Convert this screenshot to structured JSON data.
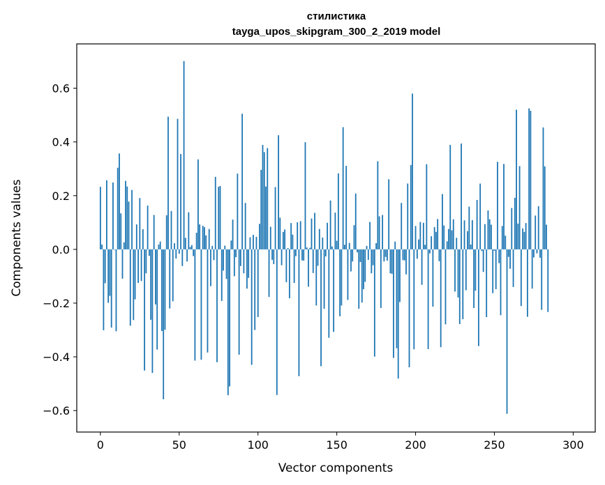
{
  "chart_data": {
    "type": "bar",
    "title": "стилистика",
    "subtitle": "tayga_upos_skipgram_300_2_2019 model",
    "xlabel": "Vector components",
    "ylabel": "Components values",
    "xlim": [
      -15,
      314
    ],
    "ylim": [
      -0.68,
      0.765
    ],
    "xticks": [
      0,
      50,
      100,
      150,
      200,
      250,
      300
    ],
    "xtick_labels": [
      "0",
      "50",
      "100",
      "150",
      "200",
      "250",
      "300"
    ],
    "yticks": [
      -0.6,
      -0.4,
      -0.2,
      0.0,
      0.2,
      0.4,
      0.6
    ],
    "ytick_labels": [
      "−0.6",
      "−0.4",
      "−0.2",
      "0.0",
      "0.2",
      "0.4",
      "0.6"
    ],
    "grid": false,
    "bar_color": "#1f77b4",
    "series": [
      {
        "name": "components",
        "values": [
          0.233,
          0.018,
          -0.301,
          -0.126,
          0.257,
          -0.199,
          -0.173,
          -0.291,
          0.249,
          -0.002,
          -0.305,
          0.304,
          0.357,
          0.134,
          -0.109,
          0.026,
          0.255,
          0.234,
          0.178,
          -0.284,
          0.221,
          -0.263,
          -0.186,
          0.093,
          -0.125,
          0.191,
          -0.118,
          0.075,
          -0.451,
          -0.089,
          0.163,
          -0.024,
          -0.262,
          -0.46,
          0.128,
          -0.205,
          -0.373,
          0.018,
          0.029,
          -0.304,
          -0.558,
          -0.299,
          0.127,
          0.494,
          -0.22,
          0.143,
          -0.193,
          0.023,
          -0.034,
          0.486,
          -0.016,
          0.355,
          -0.062,
          0.701,
          0.043,
          -0.045,
          0.138,
          0.009,
          0.016,
          -0.025,
          -0.414,
          0.062,
          0.335,
          0.093,
          -0.411,
          0.088,
          0.083,
          0.052,
          -0.384,
          0.076,
          -0.137,
          0.013,
          -0.04,
          0.27,
          -0.42,
          0.233,
          0.236,
          -0.192,
          -0.079,
          0.014,
          -0.11,
          -0.543,
          -0.51,
          0.033,
          0.111,
          -0.1,
          -0.029,
          0.282,
          -0.392,
          -0.062,
          0.505,
          -0.089,
          0.173,
          -0.146,
          -0.106,
          0.045,
          -0.43,
          0.054,
          -0.3,
          0.047,
          -0.252,
          0.095,
          0.296,
          0.389,
          0.362,
          0.234,
          0.377,
          -0.177,
          0.084,
          -0.039,
          -0.055,
          0.232,
          -0.542,
          0.425,
          0.118,
          -0.059,
          0.065,
          0.074,
          -0.122,
          0.005,
          -0.182,
          0.098,
          0.055,
          -0.125,
          -0.025,
          0.101,
          -0.472,
          0.105,
          -0.041,
          -0.042,
          0.399,
          0.007,
          -0.139,
          0.006,
          0.115,
          -0.088,
          0.136,
          -0.209,
          -0.061,
          0.076,
          -0.435,
          0.044,
          -0.221,
          -0.026,
          0.099,
          -0.329,
          0.182,
          0.011,
          -0.307,
          0.137,
          0.032,
          0.283,
          -0.249,
          -0.209,
          0.455,
          0.017,
          0.311,
          -0.188,
          0.024,
          -0.082,
          -0.045,
          0.09,
          0.208,
          -0.011,
          -0.221,
          -0.047,
          -0.198,
          -0.148,
          -0.121,
          0.013,
          -0.039,
          0.102,
          -0.089,
          -0.059,
          -0.399,
          0.023,
          0.328,
          0.123,
          -0.218,
          0.128,
          -0.045,
          -0.028,
          -0.042,
          0.261,
          -0.089,
          -0.091,
          -0.404,
          0.029,
          -0.368,
          -0.481,
          -0.196,
          0.173,
          -0.04,
          -0.041,
          -0.093,
          0.245,
          -0.439,
          0.314,
          0.58,
          -0.372,
          0.087,
          -0.035,
          0.037,
          0.102,
          -0.132,
          0.099,
          0.017,
          0.317,
          -0.371,
          -0.015,
          0.049,
          -0.213,
          0.083,
          0.065,
          0.113,
          -0.044,
          -0.364,
          0.206,
          0.089,
          -0.279,
          0.03,
          0.076,
          0.389,
          0.071,
          0.112,
          -0.157,
          0.043,
          -0.179,
          -0.278,
          0.394,
          -0.26,
          0.108,
          -0.152,
          0.068,
          0.159,
          0.018,
          0.109,
          -0.218,
          -0.154,
          0.184,
          -0.36,
          0.245,
          -0.006,
          -0.084,
          0.094,
          -0.252,
          0.145,
          0.112,
          0.092,
          -0.163,
          -0.005,
          -0.148,
          0.326,
          -0.051,
          -0.245,
          0.087,
          0.318,
          0.051,
          -0.612,
          -0.028,
          -0.072,
          0.154,
          -0.14,
          0.192,
          0.52,
          0.096,
          0.31,
          -0.211,
          0.078,
          0.065,
          0.098,
          -0.251,
          0.525,
          0.516,
          -0.146,
          -0.03,
          0.126,
          -0.015,
          0.161,
          -0.031,
          -0.225,
          0.454,
          0.309,
          0.092,
          -0.233
        ]
      }
    ]
  }
}
